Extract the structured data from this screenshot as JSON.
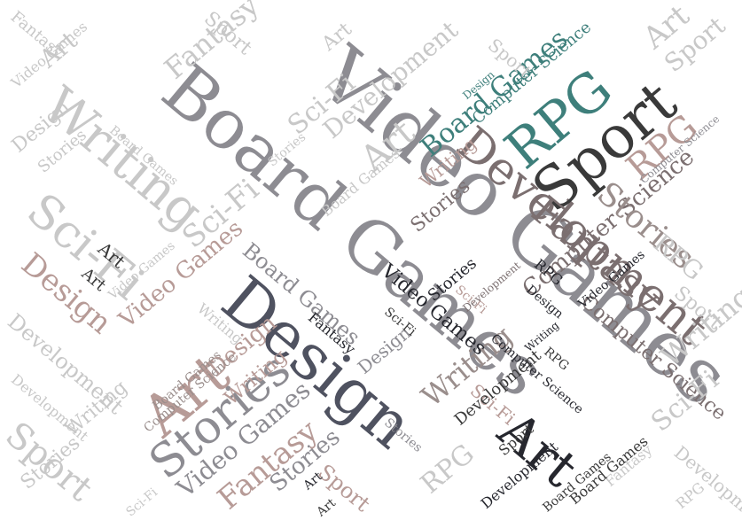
{
  "palette": {
    "ink": "#26272e",
    "slate": "#4f5260",
    "charcoal": "#3a3a3a",
    "taupe": "#7b6f70",
    "rose": "#b79b97",
    "teal": "#3e7f7b",
    "mid_gray": "#8d8c92",
    "warm_gray": "#9a8e8c",
    "light_gray": "#c8c8c8",
    "faint_gray": "#dedede"
  },
  "words": [
    {
      "text": "Video Games"
    },
    {
      "text": "Board Games"
    },
    {
      "text": "Design"
    },
    {
      "text": "Development"
    },
    {
      "text": "Sport"
    },
    {
      "text": "RPG"
    },
    {
      "text": "Art"
    },
    {
      "text": "Stories"
    },
    {
      "text": "Fantasy"
    },
    {
      "text": "Writing"
    },
    {
      "text": "Sci-Fi"
    },
    {
      "text": "Computer Science"
    },
    {
      "text": "Art"
    },
    {
      "text": "Design"
    },
    {
      "text": "Writing"
    },
    {
      "text": "Sci-Fi"
    },
    {
      "text": "Sport"
    },
    {
      "text": "Stories"
    },
    {
      "text": "Art"
    },
    {
      "text": "Board Games"
    },
    {
      "text": "Computer Science"
    },
    {
      "text": "RPG"
    },
    {
      "text": "Fantasy"
    },
    {
      "text": "Stories"
    },
    {
      "text": "Video Games"
    },
    {
      "text": "Board Games"
    },
    {
      "text": "Computer Science"
    },
    {
      "text": "Writing"
    },
    {
      "text": "Sci-Fi"
    },
    {
      "text": "Fantasy"
    },
    {
      "text": "Video Games"
    },
    {
      "text": "Development"
    },
    {
      "text": "RPG"
    },
    {
      "text": "Development"
    },
    {
      "text": "Design"
    },
    {
      "text": "Writing"
    },
    {
      "text": "Sci-Fi"
    },
    {
      "text": "Video Games"
    },
    {
      "text": "Art"
    },
    {
      "text": "Sport"
    },
    {
      "text": "RPG"
    },
    {
      "text": "Board Games"
    },
    {
      "text": "Design"
    },
    {
      "text": "Stories"
    },
    {
      "text": "Writing"
    },
    {
      "text": "Sport"
    },
    {
      "text": "Stories"
    },
    {
      "text": "Development"
    },
    {
      "text": "Art"
    },
    {
      "text": "Computer Science"
    },
    {
      "text": "Fantasy"
    },
    {
      "text": "Board Games"
    },
    {
      "text": "RPG"
    },
    {
      "text": "Sci-Fi"
    },
    {
      "text": "Art"
    },
    {
      "text": "Design"
    },
    {
      "text": "Video Games"
    },
    {
      "text": "Board Games"
    },
    {
      "text": "Stories"
    },
    {
      "text": "Sport"
    },
    {
      "text": "Writing"
    },
    {
      "text": "Development"
    },
    {
      "text": "Art"
    },
    {
      "text": "Design"
    },
    {
      "text": "Sci-Fi"
    },
    {
      "text": "Video Games"
    },
    {
      "text": "Stories"
    },
    {
      "text": "Computer Science"
    },
    {
      "text": "Board Games"
    },
    {
      "text": "Fantasy"
    },
    {
      "text": "Development"
    },
    {
      "text": "RPG"
    },
    {
      "text": "Writing"
    },
    {
      "text": "Sport"
    },
    {
      "text": "Art"
    },
    {
      "text": "Sci-Fi"
    },
    {
      "text": "Development"
    },
    {
      "text": "Video Games"
    },
    {
      "text": "Art"
    },
    {
      "text": "Design"
    },
    {
      "text": "Sport"
    },
    {
      "text": "Writing"
    },
    {
      "text": "Fantasy"
    },
    {
      "text": "Board Games"
    },
    {
      "text": "Stories"
    },
    {
      "text": "RPG"
    },
    {
      "text": "Computer Science"
    },
    {
      "text": "Sci-Fi"
    },
    {
      "text": "Art"
    },
    {
      "text": "Development"
    },
    {
      "text": "Stories"
    },
    {
      "text": "Sport"
    }
  ]
}
